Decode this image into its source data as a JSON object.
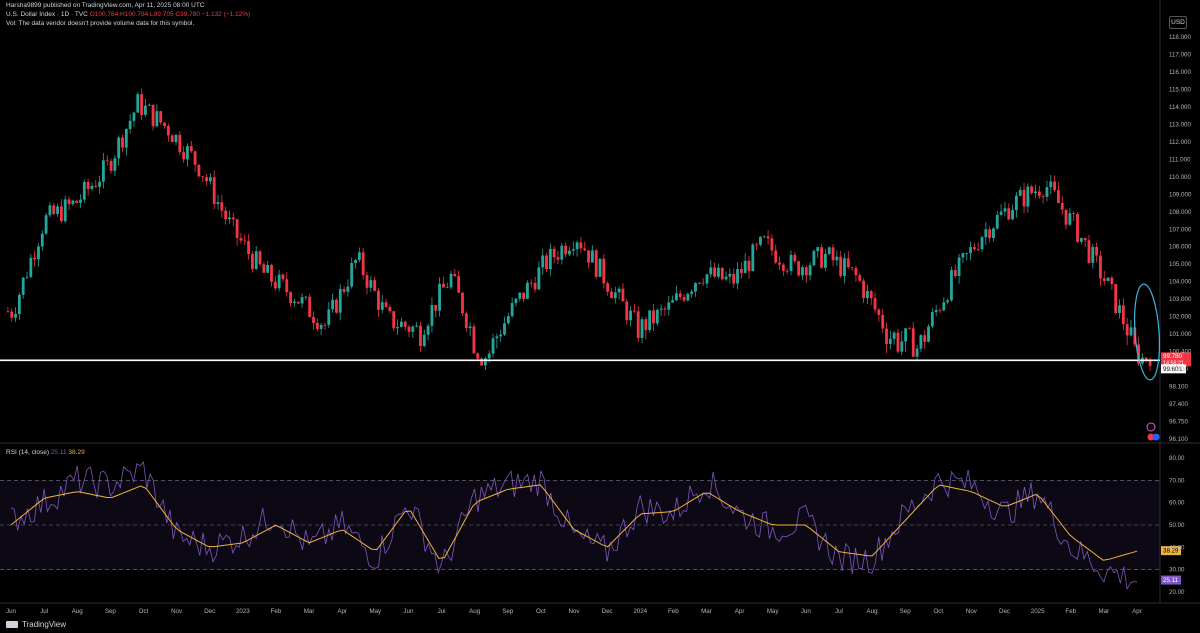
{
  "header": {
    "published": "Harsha9899 published on TradingView.com, Apr 11, 2025 08:00 UTC",
    "symbol": "U.S. Dollar Index · 1D · TVC",
    "ohlc": "O100.784 H100.784 L99.705 C99.780 −1.132 (−1.12%)",
    "volume_note": "Vol: The data vendor doesn't provide volume data for this symbol.",
    "currency": "USD"
  },
  "rsi": {
    "label": "RSI (14, close)",
    "value1": "25.11",
    "value2": "38.29"
  },
  "footer": {
    "brand": "TradingView"
  },
  "colors": {
    "up": "#26a69a",
    "down": "#f23645",
    "rsi": "#7e57c2",
    "rsi_ma": "#f0b33b",
    "support_line": "#ffffff",
    "highlight_ellipse": "#3fb4d9",
    "background": "#000000"
  },
  "chart_data": [
    {
      "type": "candlestick",
      "title": "U.S. Dollar Index",
      "y_ticks": [
        "118.000",
        "117.000",
        "116.000",
        "115.000",
        "114.000",
        "113.000",
        "112.000",
        "111.000",
        "110.000",
        "109.000",
        "108.000",
        "107.000",
        "106.000",
        "105.000",
        "104.000",
        "103.000",
        "102.000",
        "101.000",
        "100.400",
        "98.800",
        "98.100",
        "97.400",
        "96.750",
        "96.100"
      ],
      "x_ticks": [
        "Jun",
        "Jul",
        "Aug",
        "Sep",
        "Oct",
        "Nov",
        "Dec",
        "2023",
        "Feb",
        "Mar",
        "Apr",
        "May",
        "Jun",
        "Jul",
        "Aug",
        "Sep",
        "Oct",
        "Nov",
        "Dec",
        "2024",
        "Feb",
        "Mar",
        "Apr",
        "May",
        "Jun",
        "Jul",
        "Aug",
        "Sep",
        "Oct",
        "Nov",
        "Dec",
        "2025",
        "Feb",
        "Mar",
        "Apr"
      ],
      "price_trace": [
        [
          "Jun",
          102.3
        ],
        [
          "Jul",
          107.5
        ],
        [
          "Aug",
          108.5
        ],
        [
          "Sep",
          110.5
        ],
        [
          "Oct",
          114.2
        ],
        [
          "Oct",
          112.7
        ],
        [
          "Nov",
          110.5
        ],
        [
          "Nov",
          107.0
        ],
        [
          "Dec",
          104.5
        ],
        [
          "2023",
          103.2
        ],
        [
          "Feb",
          101.5
        ],
        [
          "Mar",
          105.3
        ],
        [
          "Apr",
          101.8
        ],
        [
          "May",
          101.2
        ],
        [
          "Jun",
          104.3
        ],
        [
          "Jul",
          99.6
        ],
        [
          "Aug",
          102.5
        ],
        [
          "Sep",
          105.0
        ],
        [
          "Oct",
          106.7
        ],
        [
          "Nov",
          104.0
        ],
        [
          "Dec",
          101.3
        ],
        [
          "2024",
          102.5
        ],
        [
          "Feb",
          104.5
        ],
        [
          "Mar",
          104.0
        ],
        [
          "Apr",
          106.2
        ],
        [
          "May",
          104.8
        ],
        [
          "Jun",
          105.5
        ],
        [
          "Jul",
          104.2
        ],
        [
          "Aug",
          101.0
        ],
        [
          "Sep",
          100.5
        ],
        [
          "Oct",
          104.0
        ],
        [
          "Nov",
          106.8
        ],
        [
          "Dec",
          108.5
        ],
        [
          "2025",
          109.6
        ],
        [
          "Feb",
          107.0
        ],
        [
          "Mar",
          103.8
        ],
        [
          "Apr",
          99.78
        ]
      ],
      "last_price": "99.780",
      "last_price_countdown": "14:58:21",
      "support_level": "99.601",
      "support_line_value": 99.601,
      "annotations": [
        "ellipse highlighting April 2025 selloff to 99.780"
      ]
    },
    {
      "type": "line",
      "title": "RSI (14, close)",
      "y_ticks": [
        "80.00",
        "70.00",
        "60.00",
        "50.00",
        "40.00",
        "30.00",
        "20.00"
      ],
      "ylim": [
        20,
        80
      ],
      "levels": [
        70,
        50,
        30
      ],
      "series": [
        {
          "name": "RSI",
          "last": "25.11",
          "values_by_tick": [
            52,
            60,
            70,
            68,
            75,
            45,
            40,
            45,
            55,
            40,
            50,
            35,
            60,
            30,
            62,
            68,
            70,
            45,
            38,
            58,
            55,
            70,
            55,
            48,
            52,
            35,
            35,
            55,
            70,
            68,
            55,
            65,
            40,
            30,
            25.11
          ]
        },
        {
          "name": "RSI MA",
          "last": "38.29",
          "values_by_tick": [
            50,
            62,
            65,
            62,
            68,
            48,
            40,
            42,
            50,
            42,
            48,
            38,
            58,
            33,
            60,
            66,
            68,
            48,
            40,
            55,
            56,
            65,
            56,
            50,
            50,
            38,
            36,
            52,
            68,
            65,
            58,
            64,
            45,
            34,
            38.29
          ]
        }
      ]
    }
  ]
}
